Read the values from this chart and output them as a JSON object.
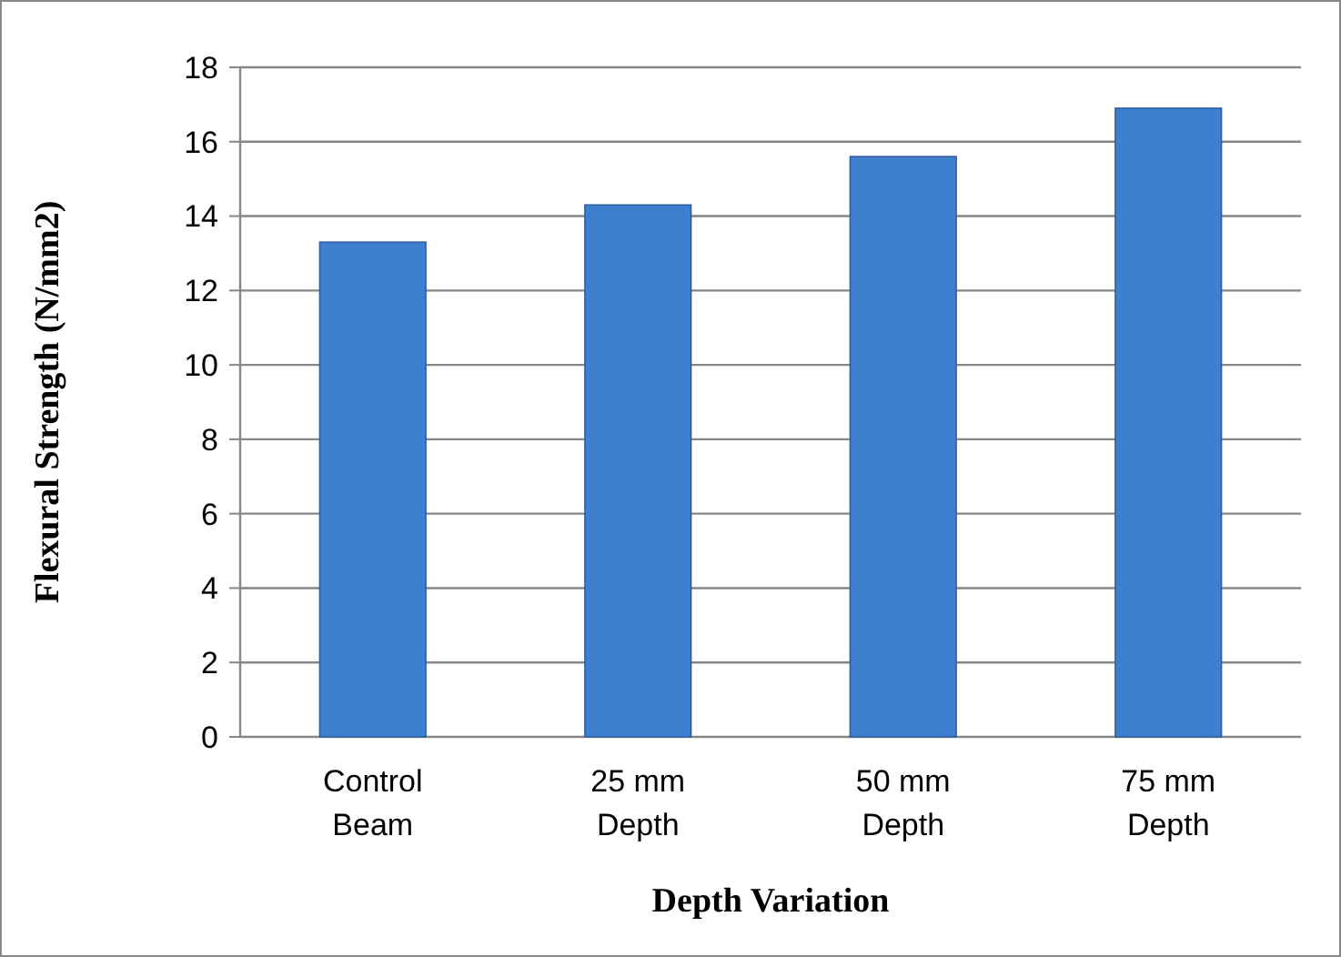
{
  "chart_data": {
    "type": "bar",
    "xlabel": "Depth Variation",
    "ylabel": "Flexural Strength (N/mm2)",
    "categories": [
      "Control\nBeam",
      "25 mm\nDepth",
      "50 mm\nDepth",
      "75 mm\nDepth"
    ],
    "values": [
      13.3,
      14.3,
      15.6,
      16.9
    ],
    "color": "#3f7fcf",
    "ylim": [
      0,
      18
    ],
    "yticks": [
      0,
      2,
      4,
      6,
      8,
      10,
      12,
      14,
      16,
      18
    ],
    "grid": "y"
  }
}
